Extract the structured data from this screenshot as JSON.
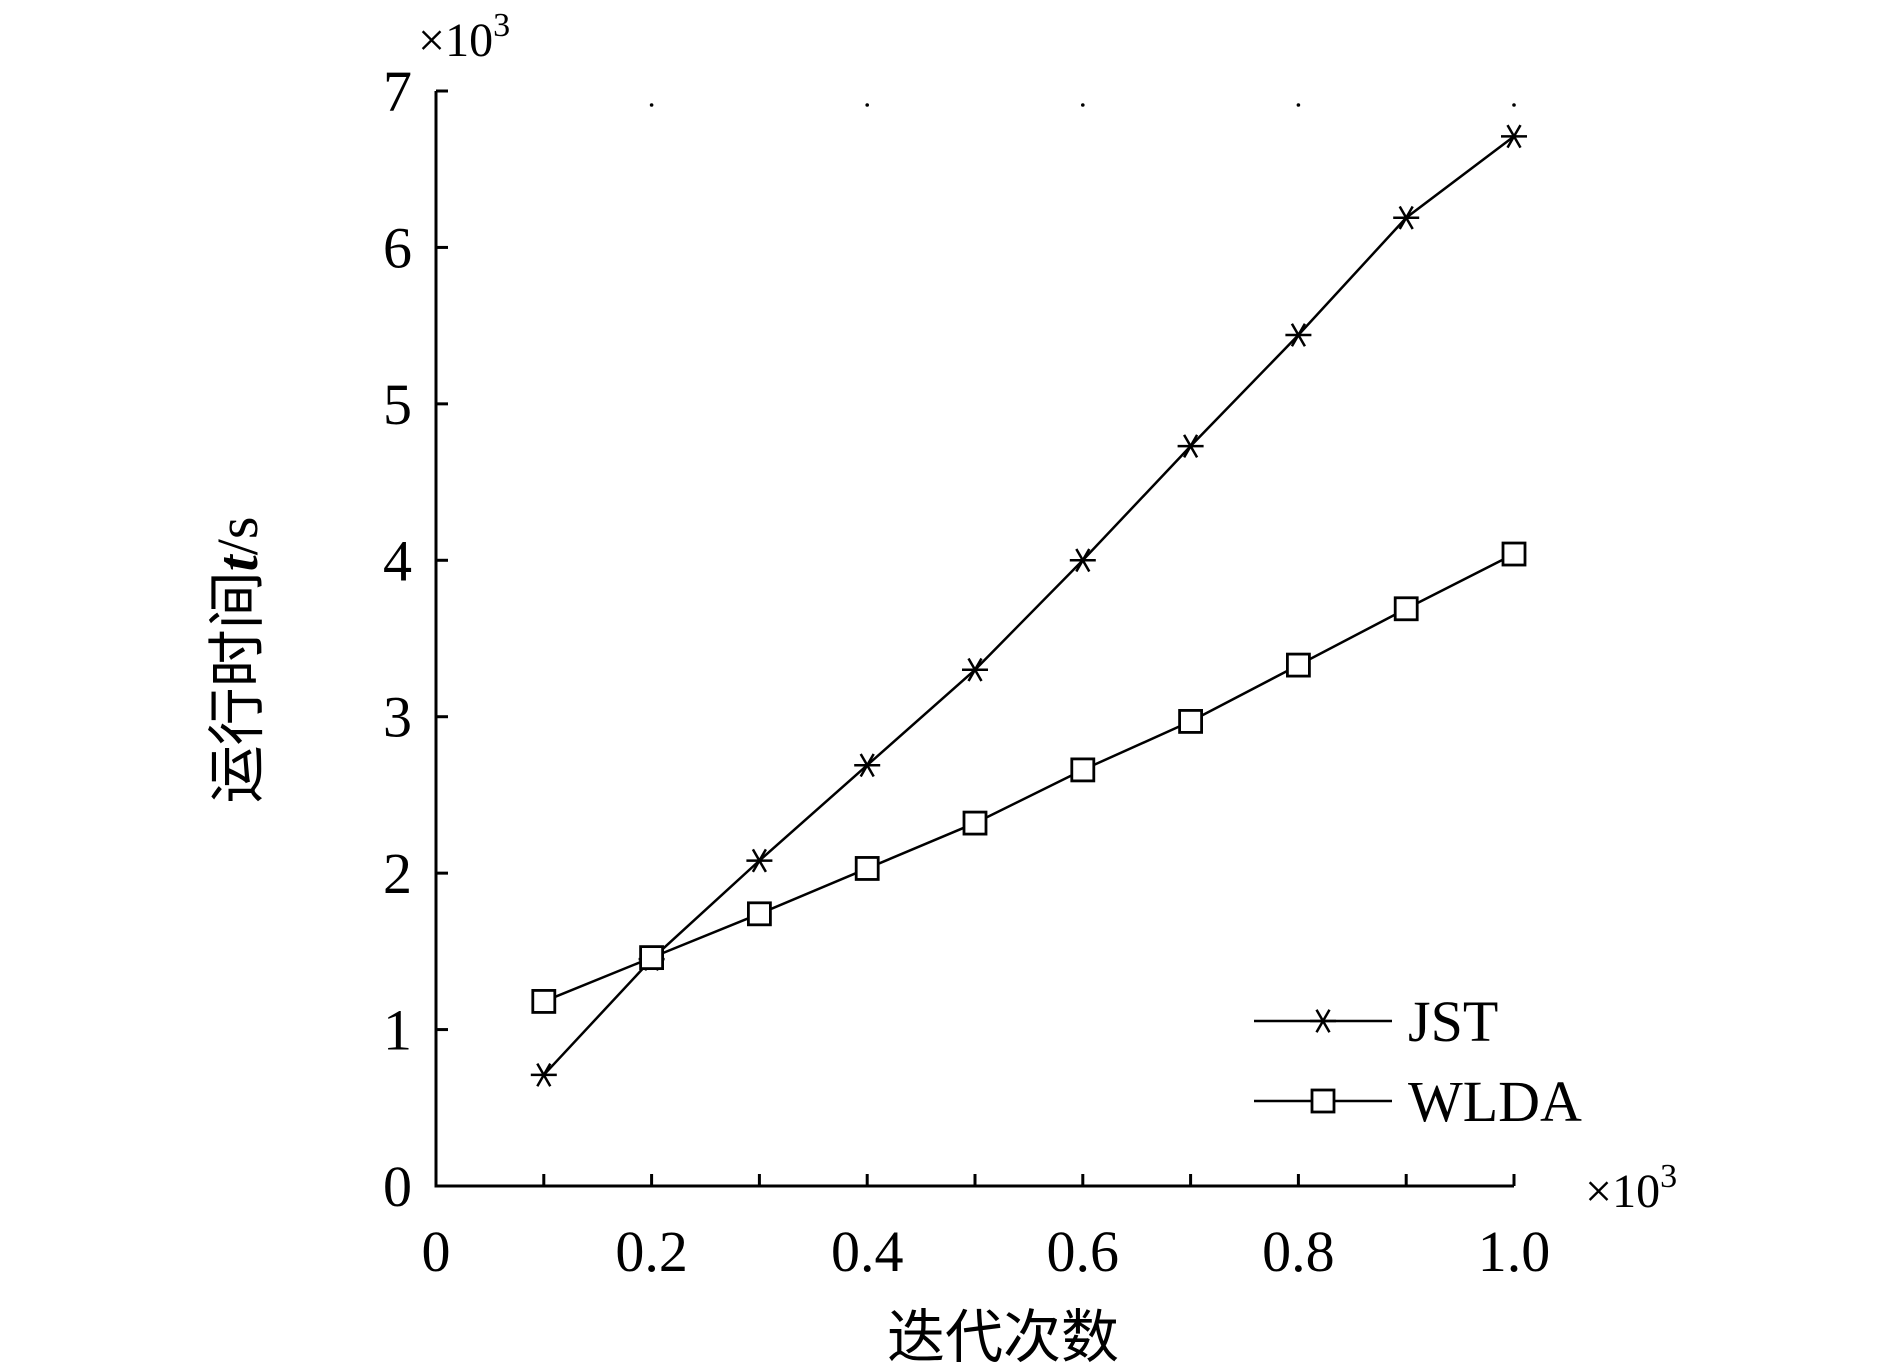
{
  "chart_data": {
    "type": "line",
    "title": "",
    "xlabel": "迭代次数",
    "ylabel_main": "运行时间",
    "ylabel_var": "t",
    "ylabel_unit": "/s",
    "x_multiplier": "×10",
    "y_multiplier": "×10",
    "multiplier_exp": "3",
    "xlim": [
      0,
      1.0
    ],
    "ylim": [
      0,
      7
    ],
    "xticks": [
      0,
      0.2,
      0.4,
      0.6,
      0.8,
      1.0
    ],
    "xtick_labels": [
      "0",
      "0.2",
      "0.4",
      "0.6",
      "0.8",
      "1.0"
    ],
    "yticks": [
      0,
      1,
      2,
      3,
      4,
      5,
      6,
      7
    ],
    "ytick_labels": [
      "0",
      "1",
      "2",
      "3",
      "4",
      "5",
      "6",
      "7"
    ],
    "x": [
      0.1,
      0.2,
      0.3,
      0.4,
      0.5,
      0.6,
      0.7,
      0.8,
      0.9,
      1.0
    ],
    "series": [
      {
        "name": "JST",
        "marker": "asterisk",
        "values": [
          0.71,
          1.45,
          2.08,
          2.69,
          3.3,
          4.0,
          4.73,
          5.44,
          6.19,
          6.71
        ]
      },
      {
        "name": "WLDA",
        "marker": "square",
        "values": [
          1.18,
          1.46,
          1.74,
          2.03,
          2.32,
          2.66,
          2.97,
          3.33,
          3.69,
          4.04
        ]
      }
    ],
    "grid": false,
    "legend_position": "bottom-right",
    "line_color": "#000000"
  }
}
